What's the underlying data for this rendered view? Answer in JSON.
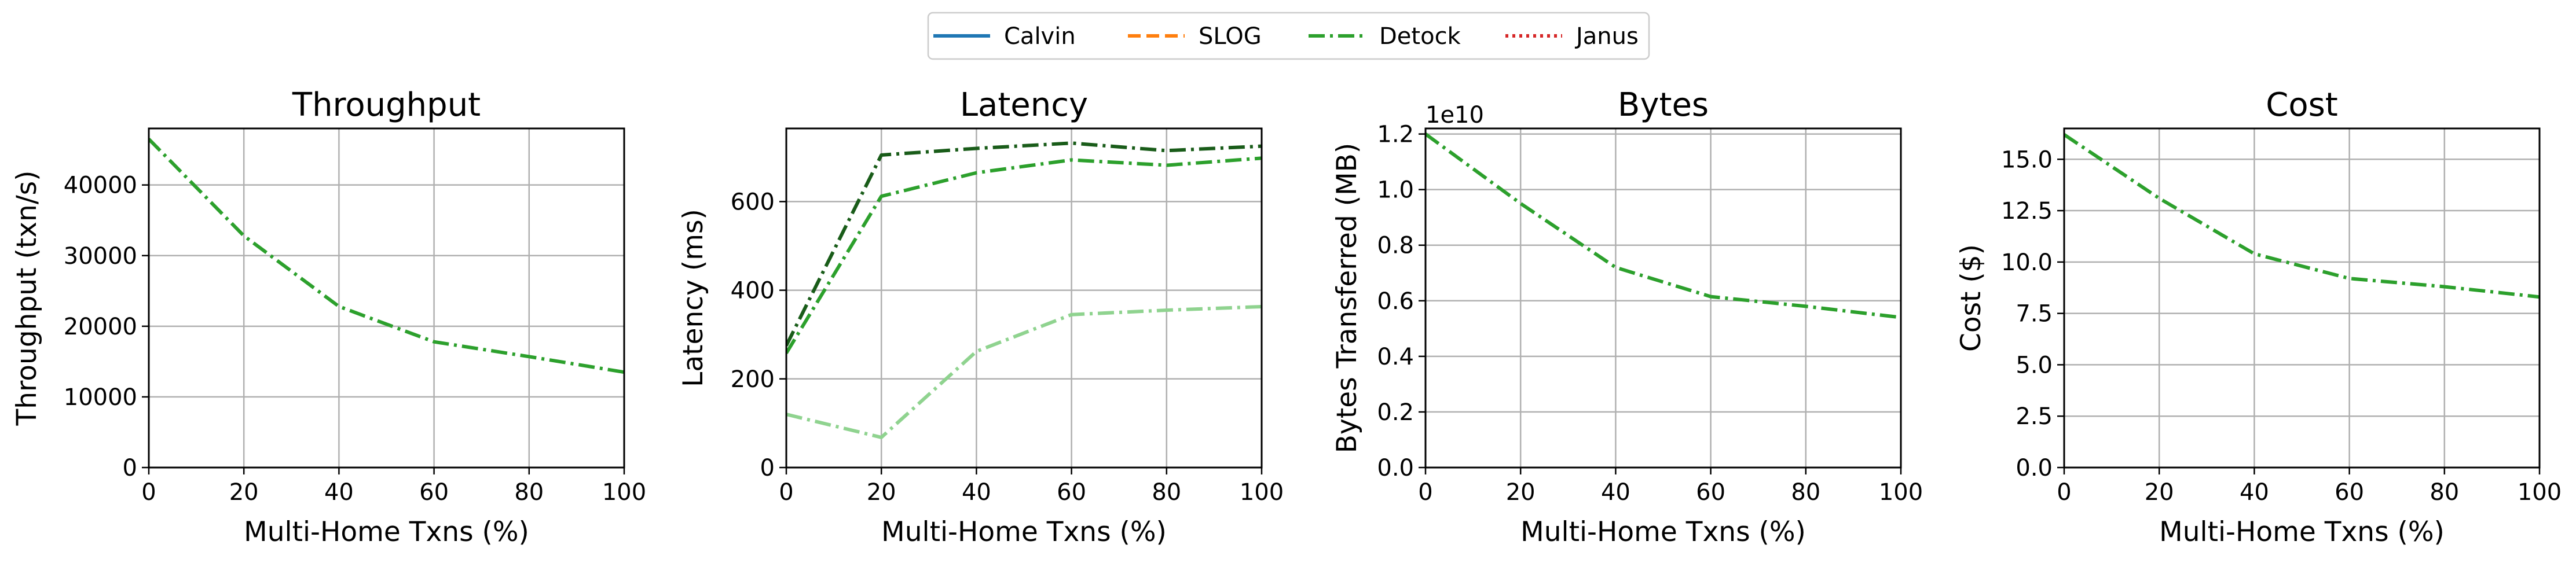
{
  "legend": {
    "placement": "top-center",
    "entries": [
      {
        "name": "Calvin",
        "color": "#1f77b4",
        "dash": "solid"
      },
      {
        "name": "SLOG",
        "color": "#ff7f0e",
        "dash": "dashed"
      },
      {
        "name": "Detock",
        "color": "#2ca02c",
        "dash": "dashdot"
      },
      {
        "name": "Janus",
        "color": "#d62728",
        "dash": "dotted"
      }
    ]
  },
  "chart_data": [
    {
      "type": "line",
      "title": "Throughput",
      "xlabel": "Multi-Home Txns (%)",
      "ylabel": "Throughput (txn/s)",
      "xlim": [
        0,
        100
      ],
      "ylim": [
        0,
        48000
      ],
      "xticks": [
        0,
        20,
        40,
        60,
        80,
        100
      ],
      "yticks": [
        0,
        10000,
        20000,
        30000,
        40000
      ],
      "ytick_labels": [
        "0",
        "10000",
        "20000",
        "30000",
        "40000"
      ],
      "grid": true,
      "series": [
        {
          "name": "Detock",
          "color": "#2ca02c",
          "dash": "dashdot",
          "x": [
            0,
            20,
            40,
            60,
            80,
            100
          ],
          "y": [
            46500,
            32800,
            22800,
            17800,
            15700,
            13500
          ]
        }
      ]
    },
    {
      "type": "line",
      "title": "Latency",
      "xlabel": "Multi-Home Txns (%)",
      "ylabel": "Latency (ms)",
      "xlim": [
        0,
        100
      ],
      "ylim": [
        0,
        765
      ],
      "xticks": [
        0,
        20,
        40,
        60,
        80,
        100
      ],
      "yticks": [
        0,
        200,
        400,
        600
      ],
      "ytick_labels": [
        "0",
        "200",
        "400",
        "600"
      ],
      "grid": true,
      "series": [
        {
          "color": "#195c19",
          "dash": "dashdot",
          "x": [
            0,
            20,
            40,
            60,
            80,
            100
          ],
          "y": [
            275,
            705,
            720,
            732,
            715,
            725
          ]
        },
        {
          "color": "#2ca02c",
          "dash": "dashdot",
          "x": [
            0,
            20,
            40,
            60,
            80,
            100
          ],
          "y": [
            258,
            612,
            665,
            694,
            682,
            698
          ]
        },
        {
          "color": "#8fd38f",
          "dash": "dashdot",
          "x": [
            0,
            20,
            40,
            60,
            80,
            100
          ],
          "y": [
            120,
            68,
            262,
            345,
            355,
            363
          ]
        }
      ]
    },
    {
      "type": "line",
      "title": "Bytes",
      "xlabel": "Multi-Home Txns (%)",
      "ylabel": "Bytes Transferred (MB)",
      "offset_text": "1e10",
      "xlim": [
        0,
        100
      ],
      "ylim": [
        0,
        1.22
      ],
      "xticks": [
        0,
        20,
        40,
        60,
        80,
        100
      ],
      "yticks": [
        0,
        0.2,
        0.4,
        0.6,
        0.8,
        1.0,
        1.2
      ],
      "ytick_labels": [
        "0.0",
        "0.2",
        "0.4",
        "0.6",
        "0.8",
        "1.0",
        "1.2"
      ],
      "grid": true,
      "series": [
        {
          "name": "Detock",
          "color": "#2ca02c",
          "dash": "dashdot",
          "x": [
            0,
            20,
            40,
            60,
            80,
            100
          ],
          "y": [
            1.2,
            0.95,
            0.72,
            0.615,
            0.58,
            0.54
          ]
        }
      ]
    },
    {
      "type": "line",
      "title": "Cost",
      "xlabel": "Multi-Home Txns (%)",
      "ylabel": "Cost ($)",
      "xlim": [
        0,
        100
      ],
      "ylim": [
        0,
        16.5
      ],
      "xticks": [
        0,
        20,
        40,
        60,
        80,
        100
      ],
      "yticks": [
        0,
        2.5,
        5,
        7.5,
        10,
        12.5,
        15
      ],
      "ytick_labels": [
        "0.0",
        "2.5",
        "5.0",
        "7.5",
        "10.0",
        "12.5",
        "15.0"
      ],
      "grid": true,
      "series": [
        {
          "name": "Detock",
          "color": "#2ca02c",
          "dash": "dashdot",
          "x": [
            0,
            20,
            40,
            60,
            80,
            100
          ],
          "y": [
            16.2,
            13.1,
            10.4,
            9.2,
            8.8,
            8.3
          ]
        }
      ]
    }
  ]
}
